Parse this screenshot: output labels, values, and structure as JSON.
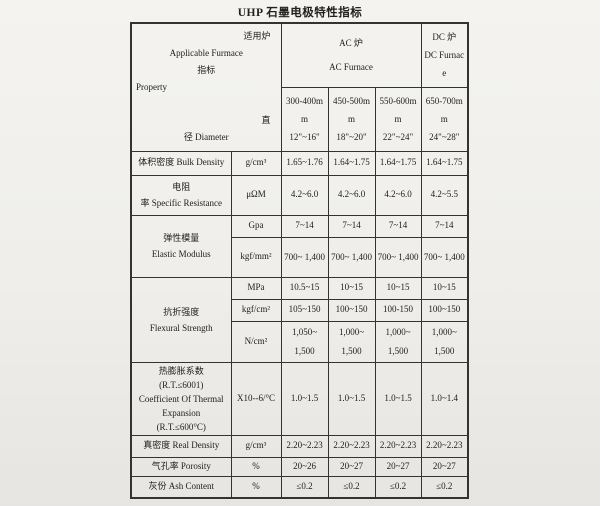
{
  "title": "UHP 石墨电极特性指标",
  "colors": {
    "paper": "#efeeea",
    "ink": "#23211e",
    "line": "#35332f"
  },
  "table": {
    "corner": {
      "l1": "适用炉",
      "l2": "Applicable Furmace",
      "l3": "指标",
      "l4": "Property",
      "l5": "直",
      "l6": "径 Diameter"
    },
    "ac": {
      "cn": "AC 炉",
      "en": "AC Furnace"
    },
    "dc": {
      "cn": "DC 炉",
      "en": "DC Furnace"
    },
    "diameters": [
      {
        "mm": "300-400mm",
        "inch": "12\"~16\""
      },
      {
        "mm": "450-500mm",
        "inch": "18\"~20\""
      },
      {
        "mm": "550-600mm",
        "inch": "22\"~24\""
      },
      {
        "mm": "650-700mm",
        "inch": "24\"~28\""
      }
    ],
    "rows": {
      "bulk": {
        "label": "体积密度 Bulk Density",
        "unit": "g/cm³",
        "v": [
          "1.65~1.76",
          "1.64~1.75",
          "1.64~1.75",
          "1.64~1.75"
        ]
      },
      "res": {
        "line1": "电阻",
        "line2": "率 Specific Resistance",
        "unit": "μΩM",
        "v": [
          "4.2~6.0",
          "4.2~6.0",
          "4.2~6.0",
          "4.2~5.5"
        ]
      },
      "elastic": {
        "cn": "弹性模量",
        "en": "Elastic Modulus",
        "sub": [
          {
            "unit": "Gpa",
            "v": [
              "7~14",
              "7~14",
              "7~14",
              "7~14"
            ]
          },
          {
            "unit": "kgf/mm²",
            "v": [
              "700~ 1,400",
              "700~ 1,400",
              "700~ 1,400",
              "700~ 1,400"
            ]
          }
        ]
      },
      "flexural": {
        "cn": "抗折强度",
        "en": "Flexural Strength",
        "sub": [
          {
            "unit": "MPa",
            "v": [
              "10.5~15",
              "10~15",
              "10~15",
              "10~15"
            ]
          },
          {
            "unit": "kgf/cm²",
            "v": [
              "105~150",
              "100~150",
              "100-150",
              "100~150"
            ]
          },
          {
            "unit": "N/cm²",
            "v": [
              "1,050~ 1,500",
              "1,000~ 1,500",
              "1,000~ 1,500",
              "1,000~ 1,500"
            ]
          }
        ]
      },
      "thermal": {
        "l1": "热膨胀系数",
        "l2": "(R.T.≤6001)",
        "l3": "Coefficient Of Thermal",
        "l4": "Expansion",
        "l5": "(R.T.≤600°C)",
        "unit": "X10--6/°C",
        "v": [
          "1.0~1.5",
          "1.0~1.5",
          "1.0~1.5",
          "1.0~1.4"
        ]
      },
      "real": {
        "label": "真密度 Real Density",
        "unit": "g/cm³",
        "v": [
          "2.20~2.23",
          "2.20~2.23",
          "2.20~2.23",
          "2.20~2.23"
        ]
      },
      "porosity": {
        "label": "气孔率 Porosity",
        "unit": "%",
        "v": [
          "20~26",
          "20~27",
          "20~27",
          "20~27"
        ]
      },
      "ash": {
        "label": "灰份 Ash Content",
        "unit": "%",
        "v": [
          "≤0.2",
          "≤0.2",
          "≤0.2",
          "≤0.2"
        ]
      }
    }
  }
}
